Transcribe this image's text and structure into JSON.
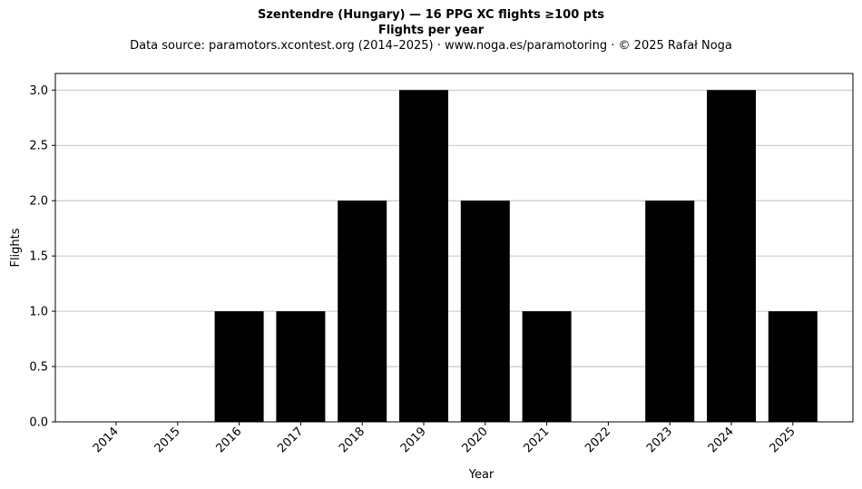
{
  "header": {
    "title": "Szentendre (Hungary)  —  16 PPG XC flights ≥100 pts",
    "subtitle": "Flights per year",
    "source": "Data source: paramotors.xcontest.org (2014–2025)  ·  www.noga.es/paramotoring  ·  © 2025 Rafał Noga"
  },
  "chart_data": {
    "type": "bar",
    "title": "Szentendre (Hungary)  —  16 PPG XC flights ≥100 pts",
    "subtitle": "Flights per year",
    "xlabel": "Year",
    "ylabel": "Flights",
    "categories": [
      "2014",
      "2015",
      "2016",
      "2017",
      "2018",
      "2019",
      "2020",
      "2021",
      "2022",
      "2023",
      "2024",
      "2025"
    ],
    "values": [
      0,
      0,
      1,
      1,
      2,
      3,
      2,
      1,
      0,
      2,
      3,
      1
    ],
    "ylim": [
      0,
      3.15
    ],
    "yticks": [
      "0.0",
      "0.5",
      "1.0",
      "1.5",
      "2.0",
      "2.5",
      "3.0"
    ],
    "grid": "horizontal",
    "bar_color": "#000000",
    "grid_color": "#b0b0b0"
  }
}
